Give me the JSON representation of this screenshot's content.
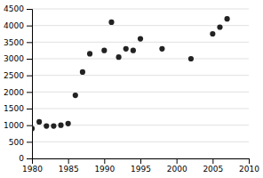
{
  "chart_data": {
    "type": "scatter",
    "x": [
      1980,
      1981,
      1982,
      1983,
      1984,
      1985,
      1986,
      1987,
      1988,
      1990,
      1991,
      1992,
      1993,
      1994,
      1995,
      1998,
      2002,
      2005,
      2006,
      2007
    ],
    "y": [
      900,
      1100,
      975,
      975,
      1000,
      1050,
      1900,
      2600,
      3150,
      3250,
      4100,
      3050,
      3300,
      3250,
      3600,
      3300,
      3000,
      3750,
      3950,
      4200
    ],
    "xlim": [
      1980,
      2010
    ],
    "ylim": [
      0,
      4500
    ],
    "xticks": [
      1980,
      1985,
      1990,
      1995,
      2000,
      2005,
      2010
    ],
    "yticks": [
      0,
      500,
      1000,
      1500,
      2000,
      2500,
      3000,
      3500,
      4000,
      4500
    ],
    "marker": "circle",
    "color": "#222222",
    "grid": true
  }
}
